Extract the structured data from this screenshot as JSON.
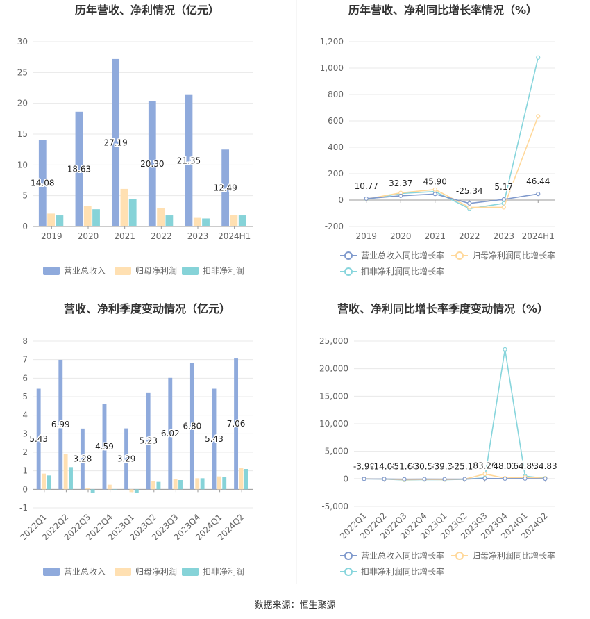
{
  "source_label": "数据来源：恒生聚源",
  "colors": {
    "revenue": "#8faadc",
    "net_profit": "#ffe0b2",
    "deducted_net_profit": "#86d3d8",
    "revenue_line": "#7f99cc",
    "net_line": "#ffd89a",
    "deducted_line": "#87d5dc",
    "grid": "#e8e8e8",
    "axis_text": "#666666",
    "title_text": "#333333",
    "divider": "#eeeeee"
  },
  "chart_data": [
    {
      "type": "bar",
      "title": "历年营收、净利情况（亿元）",
      "categories": [
        "2019",
        "2020",
        "2021",
        "2022",
        "2023",
        "2024H1"
      ],
      "ylim": [
        0,
        30
      ],
      "yticks": [
        0,
        5,
        10,
        15,
        20,
        25,
        30
      ],
      "ytick_labels": [
        "0",
        "5",
        "10",
        "15",
        "20",
        "25",
        "30"
      ],
      "legend_position": "bottom",
      "series": [
        {
          "name": "营业总收入",
          "values": [
            14.08,
            18.63,
            27.19,
            20.3,
            21.35,
            12.49
          ],
          "labels": [
            "14.08",
            "18.63",
            "27.19",
            "20.30",
            "21.35",
            "12.49"
          ]
        },
        {
          "name": "归母净利润",
          "values": [
            2.1,
            3.3,
            6.1,
            3.0,
            1.4,
            1.9
          ]
        },
        {
          "name": "扣非净利润",
          "values": [
            1.8,
            2.8,
            4.5,
            1.8,
            1.3,
            1.8
          ]
        }
      ]
    },
    {
      "type": "line",
      "title": "历年营收、净利同比增长率情况（%）",
      "categories": [
        "2019",
        "2020",
        "2021",
        "2022",
        "2023",
        "2024H1"
      ],
      "ylim": [
        -200,
        1200
      ],
      "yticks": [
        -200,
        0,
        200,
        400,
        600,
        800,
        1000,
        1200
      ],
      "ytick_labels": [
        "-200",
        "0",
        "200",
        "400",
        "600",
        "800",
        "1,000",
        "1,200"
      ],
      "legend_position": "bottom",
      "series": [
        {
          "name": "营业总收入同比增长率",
          "values": [
            10.77,
            32.37,
            45.9,
            -25.34,
            5.17,
            46.44
          ],
          "labels": [
            "10.77",
            "32.37",
            "45.90",
            "-25.34",
            "5.17",
            "46.44"
          ]
        },
        {
          "name": "归母净利润同比增长率",
          "values": [
            8,
            55,
            80,
            -55,
            -55,
            635
          ]
        },
        {
          "name": "扣非净利润同比增长率",
          "values": [
            5,
            50,
            65,
            -65,
            -25,
            1080
          ]
        }
      ]
    },
    {
      "type": "bar",
      "title": "营收、净利季度变动情况（亿元）",
      "categories": [
        "2022Q1",
        "2022Q2",
        "2022Q3",
        "2022Q4",
        "2023Q1",
        "2023Q2",
        "2023Q3",
        "2023Q4",
        "2024Q1",
        "2024Q2"
      ],
      "ylim": [
        -1,
        8
      ],
      "yticks": [
        -1,
        0,
        1,
        2,
        3,
        4,
        5,
        6,
        7,
        8
      ],
      "ytick_labels": [
        "-1",
        "0",
        "1",
        "2",
        "3",
        "4",
        "5",
        "6",
        "7",
        "8"
      ],
      "legend_position": "bottom",
      "series": [
        {
          "name": "营业总收入",
          "values": [
            5.43,
            6.99,
            3.28,
            4.59,
            3.29,
            5.23,
            6.02,
            6.8,
            5.43,
            7.06
          ],
          "labels": [
            "5.43",
            "6.99",
            "3.28",
            "4.59",
            "3.29",
            "5.23",
            "6.02",
            "6.80",
            "5.43",
            "7.06"
          ]
        },
        {
          "name": "归母净利润",
          "values": [
            0.85,
            1.9,
            0.05,
            0.25,
            -0.15,
            0.45,
            0.55,
            0.6,
            0.7,
            1.15
          ]
        },
        {
          "name": "扣非净利润",
          "values": [
            0.75,
            1.2,
            -0.2,
            0.0,
            -0.2,
            0.4,
            0.5,
            0.6,
            0.65,
            1.1
          ]
        }
      ]
    },
    {
      "type": "line",
      "title": "营收、净利同比增长率季度变动情况（%）",
      "categories": [
        "2022Q1",
        "2022Q2",
        "2022Q3",
        "2022Q4",
        "2023Q1",
        "2023Q2",
        "2023Q3",
        "2023Q4",
        "2024Q1",
        "2024Q2"
      ],
      "ylim": [
        -5000,
        25000
      ],
      "yticks": [
        -5000,
        0,
        5000,
        10000,
        15000,
        20000,
        25000
      ],
      "ytick_labels": [
        "-5,000",
        "0",
        "5,000",
        "10,000",
        "15,000",
        "20,000",
        "25,000"
      ],
      "legend_position": "bottom",
      "series": [
        {
          "name": "营业总收入同比增长率",
          "values": [
            -3.9,
            -14.08,
            -51.6,
            -30.56,
            -39.34,
            -25.13,
            83.26,
            48.02,
            64.89,
            34.83
          ],
          "labels": [
            "-3.90",
            "-14.08",
            "-51.60",
            "-30.56",
            "-39.34",
            "-25.13",
            "83.26",
            "48.02",
            "64.89",
            "34.83"
          ]
        },
        {
          "name": "归母净利润同比增长率",
          "values": [
            30,
            -20,
            -150,
            -100,
            -130,
            -40,
            900,
            150,
            300,
            120
          ]
        },
        {
          "name": "扣非净利润同比增长率",
          "values": [
            20,
            -30,
            -200,
            -120,
            -150,
            -60,
            200,
            23500,
            500,
            150
          ]
        }
      ]
    }
  ]
}
